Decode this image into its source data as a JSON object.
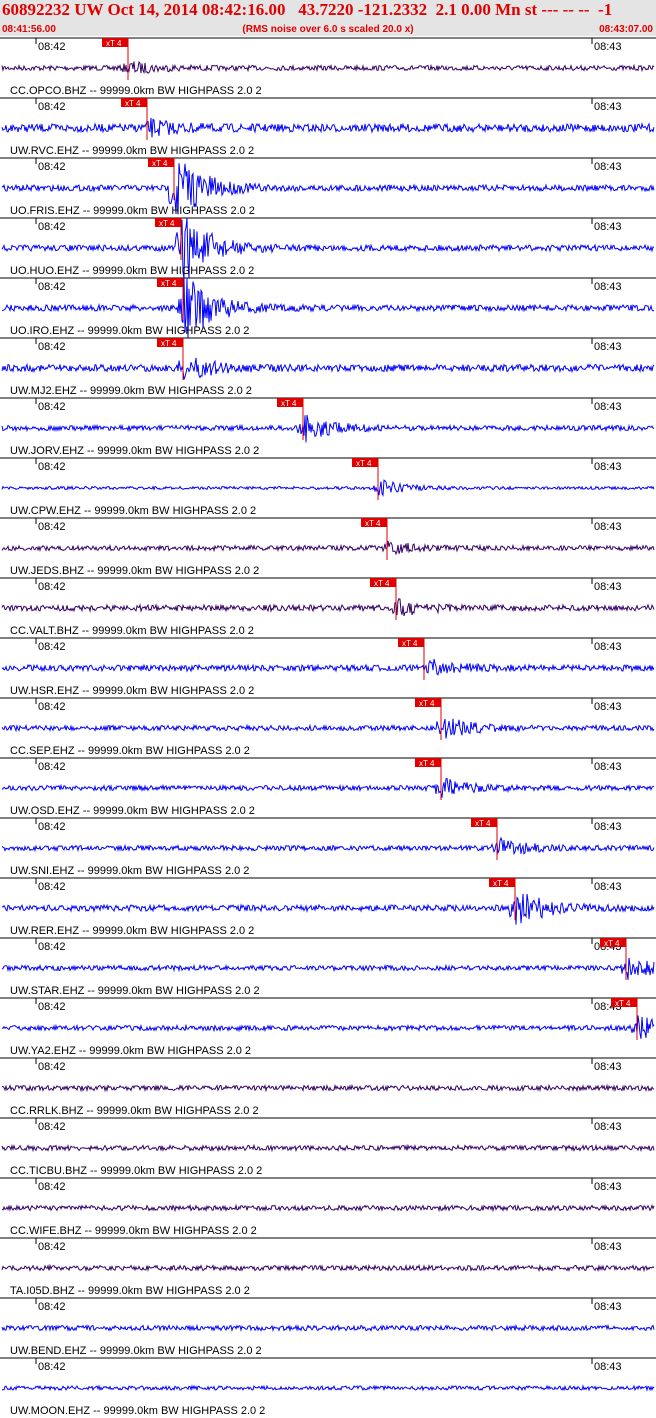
{
  "header": {
    "title": "60892232 UW Oct 14, 2014 08:42:16.00   43.7220 -121.2332  2.1 0.00 Mn st --- -- --  -1",
    "start_time": "08:41:56.00",
    "note": "(RMS noise over 6.0 s scaled 20.0 x)",
    "end_time": "08:43:07.00"
  },
  "time_ticks": [
    "08:42",
    "08:43"
  ],
  "traces": [
    {
      "label": "CC.OPCO.BHZ -- 99999.0km BW HIGHPASS 2.0 2",
      "color": "#330066",
      "pick": "xT 4"
    },
    {
      "label": "UW.RVC.EHZ -- 99999.0km BW HIGHPASS 2.0 2",
      "color": "#0000ff",
      "pick": "xT 4"
    },
    {
      "label": "UO.FRIS.EHZ -- 99999.0km BW HIGHPASS 2.0 2",
      "color": "#0000ff",
      "pick": "xT 4"
    },
    {
      "label": "UO.HUO.EHZ -- 99999.0km BW HIGHPASS 2.0 2",
      "color": "#0000ff",
      "pick": "xT 4"
    },
    {
      "label": "UO.IRO.EHZ -- 99999.0km BW HIGHPASS 2.0 2",
      "color": "#0000ff",
      "pick": "xT 4"
    },
    {
      "label": "UW.MJ2.EHZ -- 99999.0km BW HIGHPASS 2.0 2",
      "color": "#0000ff",
      "pick": "xT 4"
    },
    {
      "label": "UW.JORV.EHZ -- 99999.0km BW HIGHPASS 2.0 2",
      "color": "#0000ff",
      "pick": "xT 4"
    },
    {
      "label": "UW.CPW.EHZ -- 99999.0km BW HIGHPASS 2.0 2",
      "color": "#0000ff",
      "pick": "xT 4"
    },
    {
      "label": "UW.JEDS.BHZ -- 99999.0km BW HIGHPASS 2.0 2",
      "color": "#330066",
      "pick": "xT 4"
    },
    {
      "label": "CC.VALT.BHZ -- 99999.0km BW HIGHPASS 2.0 2",
      "color": "#330066",
      "pick": "xT 4"
    },
    {
      "label": "UW.HSR.EHZ -- 99999.0km BW HIGHPASS 2.0 2",
      "color": "#0000ff",
      "pick": "xT 4"
    },
    {
      "label": "CC.SEP.EHZ -- 99999.0km BW HIGHPASS 2.0 2",
      "color": "#0000ff",
      "pick": "xT 4"
    },
    {
      "label": "UW.OSD.EHZ -- 99999.0km BW HIGHPASS 2.0 2",
      "color": "#0000ff",
      "pick": "xT 4"
    },
    {
      "label": "UW.SNI.EHZ -- 99999.0km BW HIGHPASS 2.0 2",
      "color": "#0000ff",
      "pick": "xT 4"
    },
    {
      "label": "UW.RER.EHZ -- 99999.0km BW HIGHPASS 2.0 2",
      "color": "#0000ff",
      "pick": "xT 4"
    },
    {
      "label": "UW.STAR.EHZ -- 99999.0km BW HIGHPASS 2.0 2",
      "color": "#0000ff",
      "pick": "xT 4"
    },
    {
      "label": "UW.YA2.EHZ -- 99999.0km BW HIGHPASS 2.0 2",
      "color": "#0000ff",
      "pick": "xT 4"
    },
    {
      "label": "CC.RRLK.BHZ -- 99999.0km BW HIGHPASS 2.0 2",
      "color": "#330066"
    },
    {
      "label": "CC.TICBU.BHZ -- 99999.0km BW HIGHPASS 2.0 2",
      "color": "#330066"
    },
    {
      "label": "CC.WIFE.BHZ -- 99999.0km BW HIGHPASS 2.0 2",
      "color": "#330066"
    },
    {
      "label": "TA.I05D.BHZ -- 99999.0km BW HIGHPASS 2.0 2",
      "color": "#330066"
    },
    {
      "label": "UW.BEND.EHZ -- 99999.0km BW HIGHPASS 2.0 2",
      "color": "#0000ff"
    },
    {
      "label": "UW.MOON.EHZ -- 99999.0km BW HIGHPASS 2.0 2",
      "color": "#0000ff"
    }
  ]
}
